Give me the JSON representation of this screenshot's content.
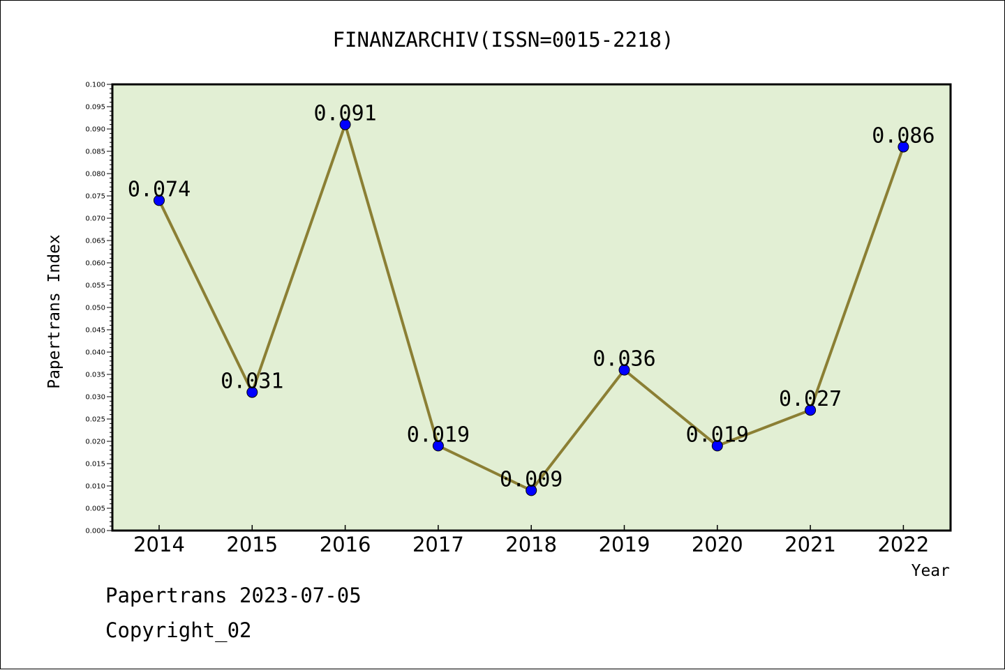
{
  "chart_data": {
    "type": "line",
    "title": "FINANZARCHIV(ISSN=0015-2218)",
    "xlabel": "Year",
    "ylabel": "Papertrans Index",
    "categories": [
      "2014",
      "2015",
      "2016",
      "2017",
      "2018",
      "2019",
      "2020",
      "2021",
      "2022"
    ],
    "values": [
      0.074,
      0.031,
      0.091,
      0.019,
      0.009,
      0.036,
      0.019,
      0.027,
      0.086
    ],
    "data_labels": [
      "0.074",
      "0.031",
      "0.091",
      "0.019",
      "0.009",
      "0.036",
      "0.019",
      "0.027",
      "0.086"
    ],
    "ylim": [
      0,
      0.1
    ],
    "y_ticks": [
      "0.000",
      "0.005",
      "0.010",
      "0.015",
      "0.020",
      "0.025",
      "0.030",
      "0.035",
      "0.040",
      "0.045",
      "0.050",
      "0.055",
      "0.060",
      "0.065",
      "0.070",
      "0.075",
      "0.080",
      "0.085",
      "0.090",
      "0.095",
      "0.100"
    ],
    "grid": false,
    "colors": {
      "plot_background": "#e2efd4",
      "line": "#8b7f34",
      "marker": "#0000ff"
    }
  },
  "footer": {
    "line1": "Papertrans 2023-07-05",
    "line2": "Copyright_02"
  }
}
